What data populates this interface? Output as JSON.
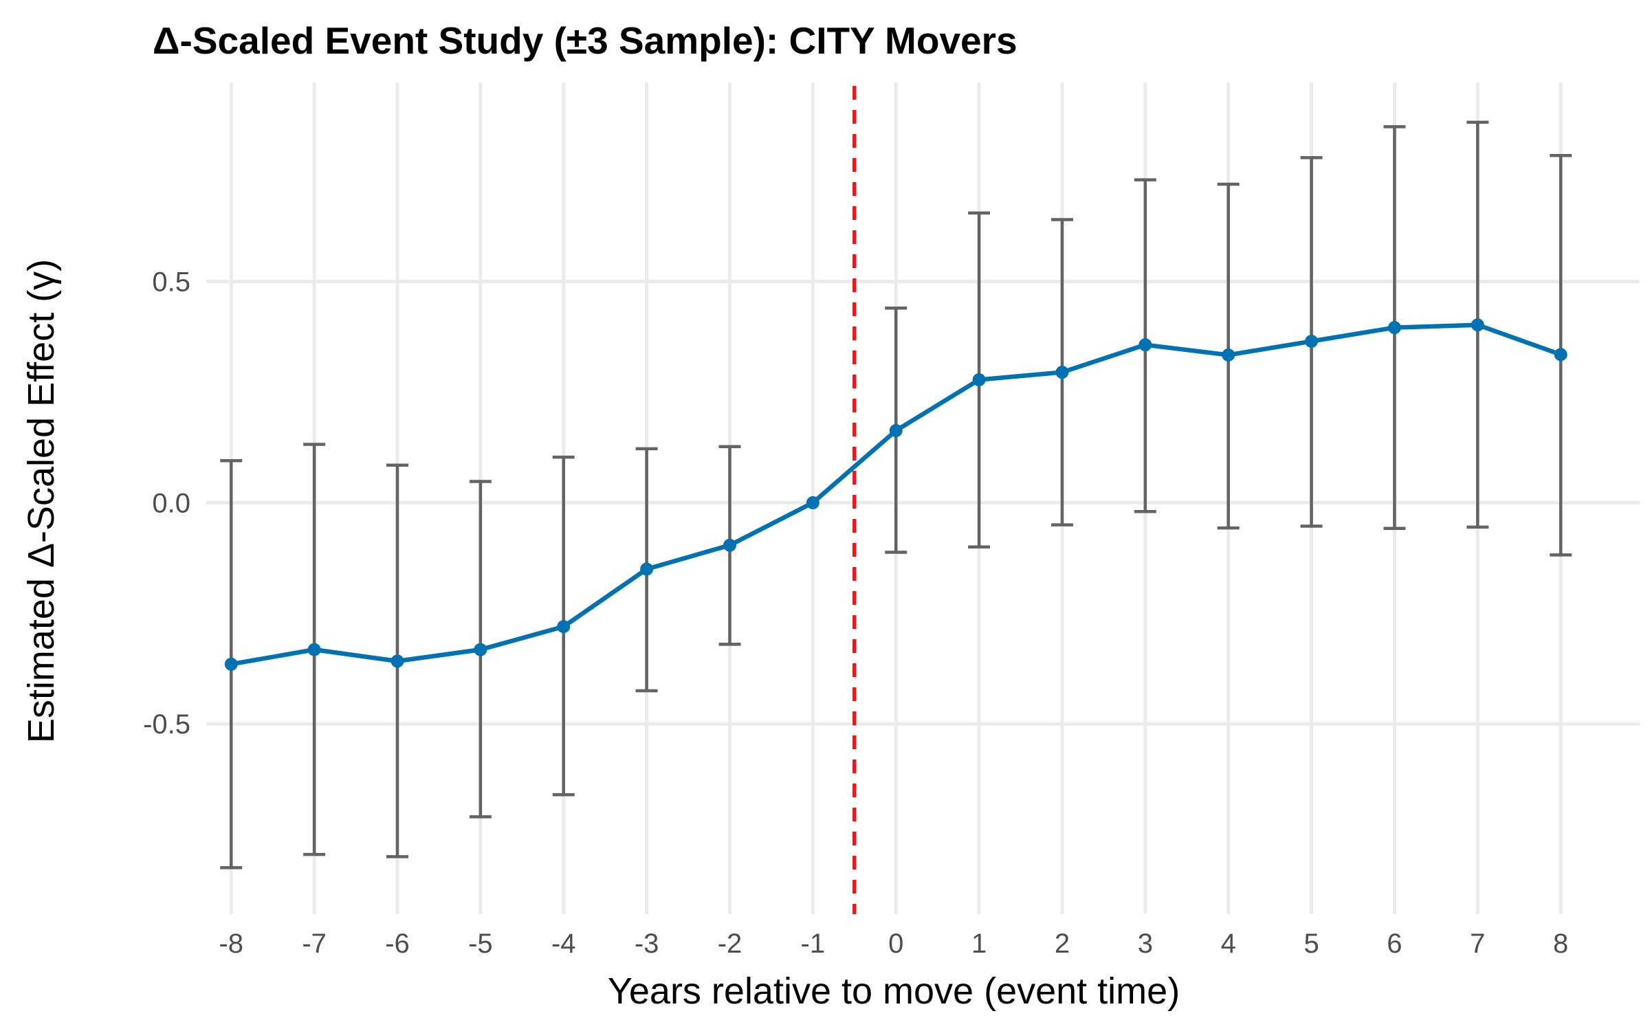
{
  "chart_data": {
    "type": "line",
    "title": "Δ-Scaled Event Study (±3 Sample): CITY Movers",
    "xlabel": "Years relative to move (event time)",
    "ylabel": "Estimated Δ-Scaled Effect (γ)",
    "x": [
      -8,
      -7,
      -6,
      -5,
      -4,
      -3,
      -2,
      -1,
      0,
      1,
      2,
      3,
      4,
      5,
      6,
      7,
      8
    ],
    "x_tick_labels": [
      "-8",
      "-7",
      "-6",
      "-5",
      "-4",
      "-3",
      "-2",
      "-1",
      "0",
      "1",
      "2",
      "3",
      "4",
      "5",
      "6",
      "7",
      "8"
    ],
    "y_ticks": [
      0.5,
      0.0,
      -0.5
    ],
    "y_tick_labels": [
      "0.5",
      "0.0",
      "-0.5"
    ],
    "xlim": [
      -8.3,
      8.95
    ],
    "ylim": [
      -0.93,
      0.95
    ],
    "grid": true,
    "reference_line": {
      "x": -0.5,
      "style": "dashed",
      "color": "#e41a1c"
    },
    "series": [
      {
        "values": [
          -0.365,
          -0.332,
          -0.358,
          -0.332,
          -0.28,
          -0.15,
          -0.096,
          0.0,
          0.163,
          0.278,
          0.295,
          0.357,
          0.334,
          0.365,
          0.396,
          0.402,
          0.335
        ],
        "ci_lower": [
          -0.825,
          -0.795,
          -0.8,
          -0.71,
          -0.66,
          -0.425,
          -0.32,
          0.0,
          -0.112,
          -0.1,
          -0.05,
          -0.02,
          -0.057,
          -0.053,
          -0.058,
          -0.055,
          -0.118
        ],
        "ci_upper": [
          0.095,
          0.132,
          0.085,
          0.048,
          0.103,
          0.122,
          0.127,
          0.0,
          0.44,
          0.655,
          0.64,
          0.73,
          0.72,
          0.78,
          0.85,
          0.86,
          0.785
        ],
        "color": "#0072b2",
        "errorbar_color": "#636363"
      }
    ]
  }
}
